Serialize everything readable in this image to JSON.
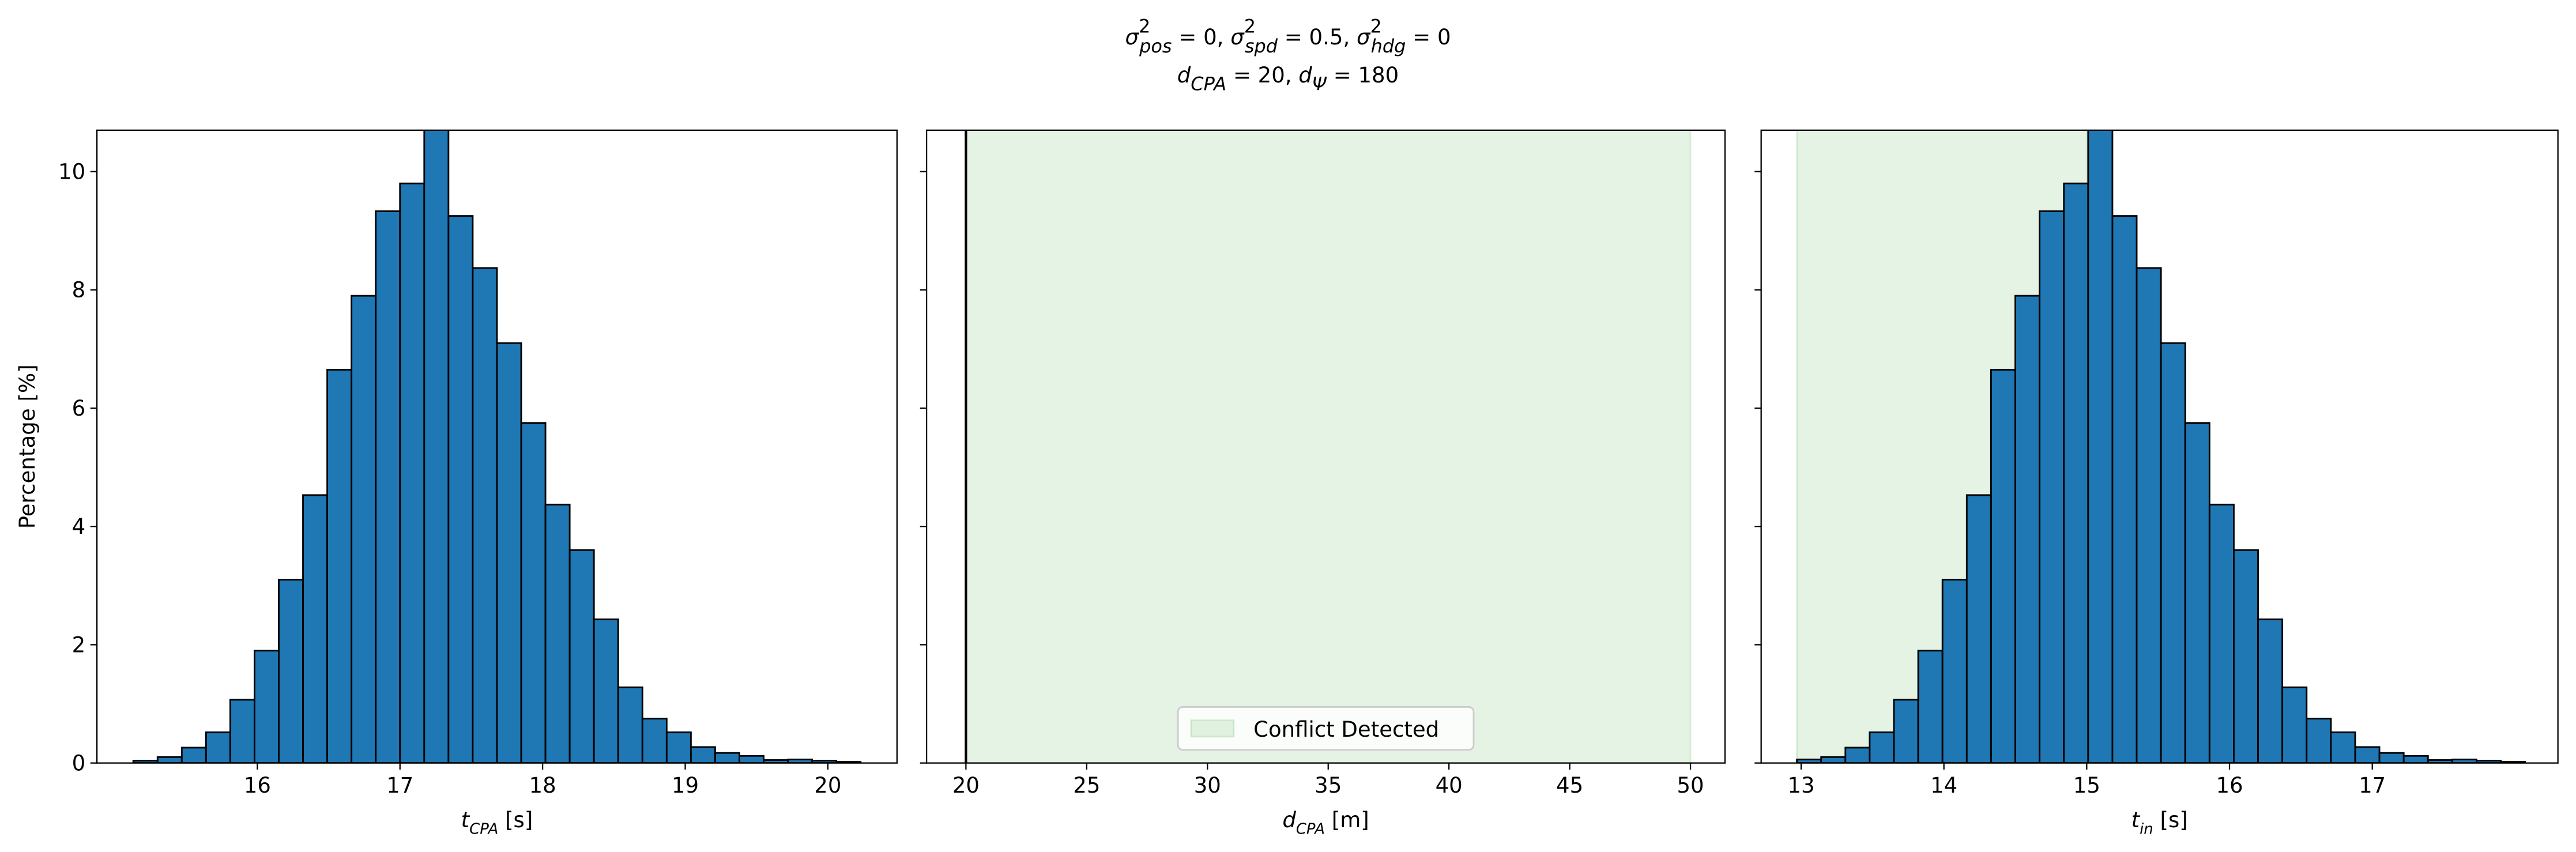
{
  "figure": {
    "title": [
      [
        {
          "base": "σ",
          "sup": "2",
          "sub": "pos"
        },
        {
          "text": " = 0, "
        },
        {
          "base": "σ",
          "sup": "2",
          "sub": "spd"
        },
        {
          "text": " = 0.5, "
        },
        {
          "base": "σ",
          "sup": "2",
          "sub": "hdg"
        },
        {
          "text": " = 0"
        }
      ],
      [
        {
          "base": "d",
          "sub": "CPA"
        },
        {
          "text": " = 20, "
        },
        {
          "base": "d",
          "sub": "Ψ"
        },
        {
          "text": " = 180"
        }
      ]
    ]
  },
  "chart_data": [
    {
      "type": "histogram",
      "color": "#1f77b4",
      "ylabel": "Percentage [%]",
      "ytick_labels": true,
      "xlabel": [
        {
          "base": "t",
          "sub": "CPA"
        },
        {
          "text": " [s]"
        }
      ],
      "bins": [
        15.13,
        15.3,
        15.47,
        15.64,
        15.81,
        15.98,
        16.15,
        16.32,
        16.49,
        16.66,
        16.83,
        17.0,
        17.17,
        17.34,
        17.51,
        17.68,
        17.85,
        18.02,
        18.19,
        18.36,
        18.53,
        18.7,
        18.87,
        19.04,
        19.21,
        19.38,
        19.55,
        19.72,
        19.89,
        20.06,
        20.23
      ],
      "values": [
        0.04,
        0.1,
        0.26,
        0.52,
        1.07,
        1.9,
        3.1,
        4.53,
        6.65,
        7.9,
        9.33,
        9.8,
        10.9,
        9.25,
        8.37,
        7.1,
        5.75,
        4.37,
        3.6,
        2.43,
        1.28,
        0.75,
        0.52,
        0.27,
        0.17,
        0.12,
        0.05,
        0.06,
        0.04,
        0.02
      ],
      "xlim": [
        14.875,
        20.485
      ],
      "xticks": [
        16,
        17,
        18,
        19,
        20
      ],
      "ylim": [
        0,
        10.7
      ],
      "yticks": [
        0,
        2,
        4,
        6,
        8,
        10
      ]
    },
    {
      "type": "histogram",
      "ytick_labels": false,
      "xlabel": [
        {
          "base": "d",
          "sub": "CPA"
        },
        {
          "text": " [m]"
        }
      ],
      "vlines": [
        20
      ],
      "span": {
        "name": "Conflict Detected",
        "from": 20,
        "to": 50,
        "color": "#2ca02c"
      },
      "legend": "lower center",
      "xlim": [
        18.37,
        51.43
      ],
      "xticks": [
        20,
        25,
        30,
        35,
        40,
        45,
        50
      ],
      "ylim": [
        0,
        10.7
      ],
      "yticks": [
        0,
        2,
        4,
        6,
        8,
        10
      ]
    },
    {
      "type": "histogram",
      "color": "#1f77b4",
      "ytick_labels": false,
      "xlabel": [
        {
          "base": "t",
          "sub": "in"
        },
        {
          "text": " [s]"
        }
      ],
      "span": {
        "from": 12.97,
        "to": 15.0,
        "color": "#2ca02c"
      },
      "bins": [
        12.97,
        13.14,
        13.31,
        13.48,
        13.65,
        13.82,
        13.99,
        14.16,
        14.33,
        14.5,
        14.67,
        14.84,
        15.01,
        15.18,
        15.35,
        15.52,
        15.69,
        15.86,
        16.03,
        16.2,
        16.37,
        16.54,
        16.71,
        16.88,
        17.05,
        17.22,
        17.39,
        17.56,
        17.73,
        17.9,
        18.07
      ],
      "values": [
        0.06,
        0.1,
        0.26,
        0.52,
        1.07,
        1.9,
        3.1,
        4.53,
        6.65,
        7.9,
        9.33,
        9.8,
        10.9,
        9.25,
        8.37,
        7.1,
        5.75,
        4.37,
        3.6,
        2.43,
        1.28,
        0.75,
        0.52,
        0.27,
        0.17,
        0.12,
        0.05,
        0.06,
        0.04,
        0.02
      ],
      "xlim": [
        12.72,
        18.3
      ],
      "xticks": [
        13,
        14,
        15,
        16,
        17
      ],
      "ylim": [
        0,
        10.7
      ],
      "yticks": [
        0,
        2,
        4,
        6,
        8,
        10
      ]
    }
  ]
}
